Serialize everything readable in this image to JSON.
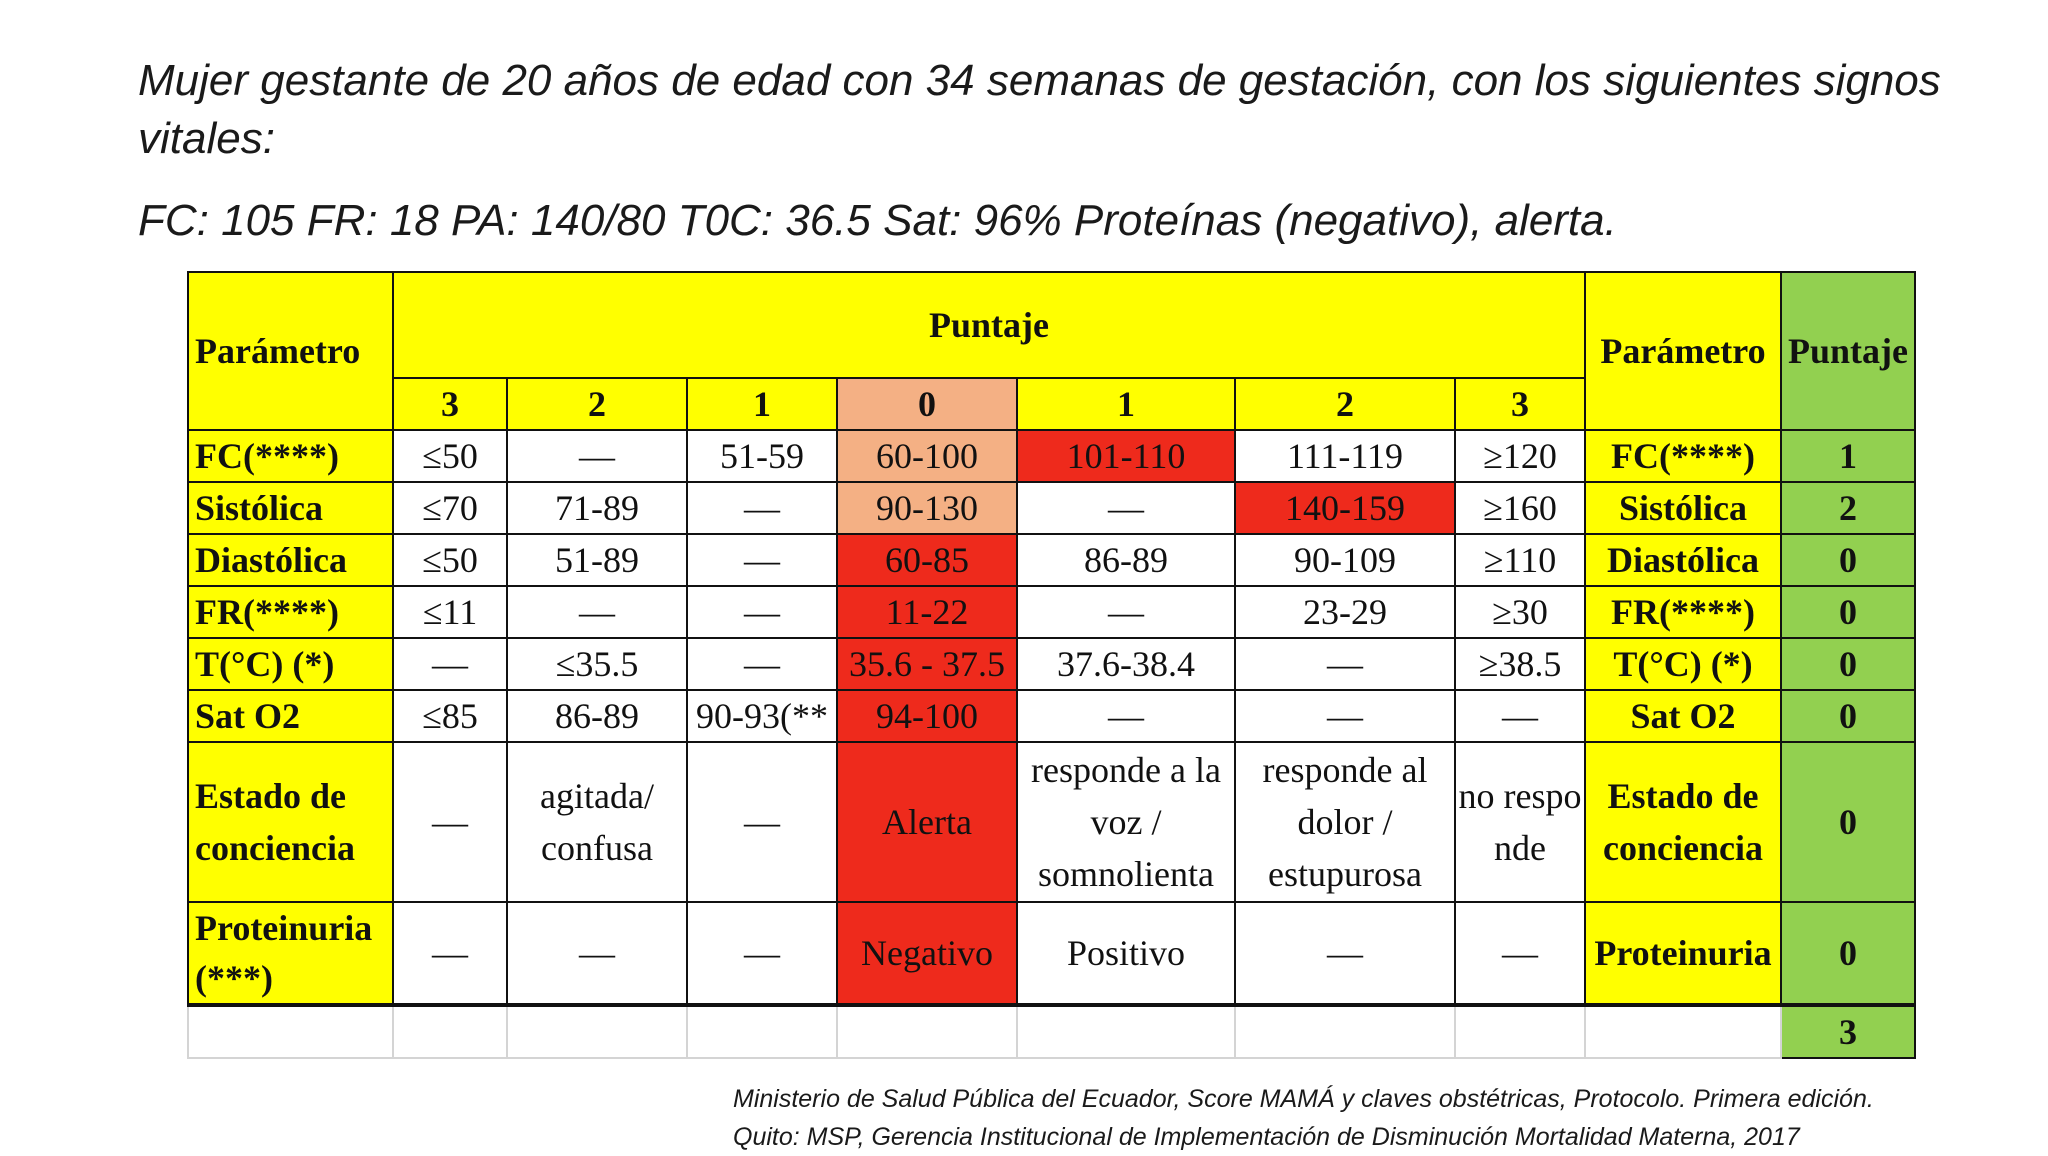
{
  "intro": {
    "line1": "Mujer gestante de 20 años de edad con 34 semanas de gestación, con los siguientes signos vitales:",
    "vitals": "FC: 105 FR: 18 PA: 140/80 T0C: 36.5 Sat: 96% Proteínas (negativo), alerta."
  },
  "table": {
    "header": {
      "param_left": "Parámetro",
      "puntaje": "Puntaje",
      "param_right": "Parámetro",
      "score_col": "Puntaje",
      "scores": [
        "3",
        "2",
        "1",
        "0",
        "1",
        "2",
        "3"
      ]
    },
    "rows": [
      {
        "label": "FC(****)",
        "cells": [
          "≤50",
          "—",
          "51-59",
          "60-100",
          "101-110",
          "111-119",
          "≥120"
        ],
        "right": "FC(****)",
        "score": "1"
      },
      {
        "label": "Sistólica",
        "cells": [
          "≤70",
          "71-89",
          "—",
          "90-130",
          "—",
          "140-159",
          "≥160"
        ],
        "right": "Sistólica",
        "score": "2"
      },
      {
        "label": "Diastólica",
        "cells": [
          "≤50",
          "51-89",
          "—",
          "60-85",
          "86-89",
          "90-109",
          "≥110"
        ],
        "right": "Diastólica",
        "score": "0"
      },
      {
        "label": "FR(****)",
        "cells": [
          "≤11",
          "—",
          "—",
          "11-22",
          "—",
          "23-29",
          "≥30"
        ],
        "right": "FR(****)",
        "score": "0"
      },
      {
        "label": "T(°C) (*)",
        "cells": [
          "—",
          "≤35.5",
          "—",
          "35.6 - 37.5",
          "37.6-38.4",
          "—",
          "≥38.5"
        ],
        "right": "T(°C) (*)",
        "score": "0"
      },
      {
        "label": "Sat O2",
        "cells": [
          "≤85",
          "86-89",
          "90-93(**",
          "94-100",
          "—",
          "—",
          "—"
        ],
        "right": "Sat O2",
        "score": "0"
      },
      {
        "label": "Estado de conciencia",
        "cells": [
          "—",
          "agitada/ confusa",
          "—",
          "Alerta",
          "responde a la voz / somnolienta",
          "responde al dolor / estupurosa",
          "no responde"
        ],
        "right": "Estado de conciencia",
        "score": "0"
      },
      {
        "label": "Proteinuria (***)",
        "cells": [
          "—",
          "—",
          "—",
          "Negativo",
          "Positivo",
          "—",
          "—"
        ],
        "right": "Proteinuria",
        "score": "0"
      }
    ],
    "total": "3",
    "colors": {
      "header": "#ffff00",
      "score_col": "#92d050",
      "highlight_orange": "#f4b084",
      "highlight_red": "#ee2a1c"
    }
  },
  "citation": {
    "line1": "Ministerio de Salud Pública del Ecuador, Score MAMÁ y claves obstétricas, Protocolo. Primera edición.",
    "line2": "Quito: MSP, Gerencia Institucional de Implementación de Disminución Mortalidad Materna, 2017"
  }
}
